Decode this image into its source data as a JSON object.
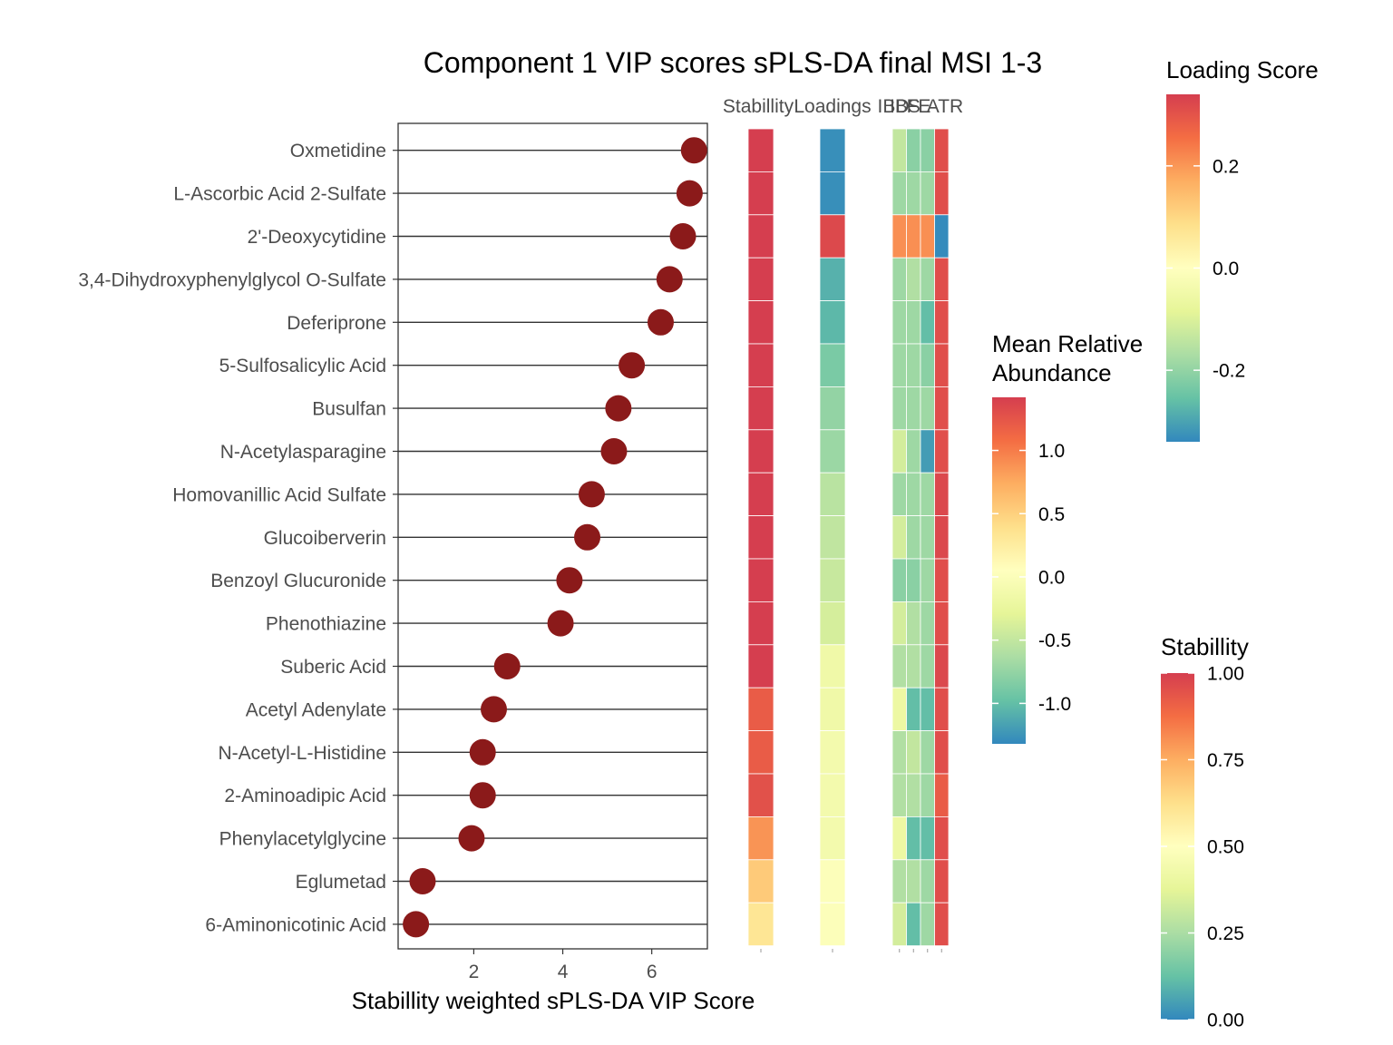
{
  "chart_data": {
    "type": "scatter",
    "title": "Component 1 VIP scores sPLS-DA final MSI 1-3",
    "xlabel": "Stabillity weighted sPLS-DA VIP Score",
    "ylabel": "",
    "xlim": [
      0.3,
      7.25
    ],
    "x_ticks": [
      2,
      4,
      6
    ],
    "marker_color": "#8b1a1a",
    "grid": false,
    "categories": [
      "Oxmetidine",
      "L-Ascorbic Acid 2-Sulfate",
      "2'-Deoxycytidine",
      "3,4-Dihydroxyphenylglycol O-Sulfate",
      "Deferiprone",
      "5-Sulfosalicylic Acid",
      "Busulfan",
      "N-Acetylasparagine",
      "Homovanillic Acid Sulfate",
      "Glucoiberverin",
      "Benzoyl Glucuronide",
      "Phenothiazine",
      "Suberic Acid",
      "Acetyl Adenylate",
      "N-Acetyl-L-Histidine",
      "2-Aminoadipic Acid",
      "Phenylacetylglycine",
      "Eglumetad",
      "6-Aminonicotinic Acid"
    ],
    "vip_scores": [
      6.95,
      6.85,
      6.7,
      6.4,
      6.2,
      5.55,
      5.25,
      5.15,
      4.65,
      4.55,
      4.15,
      3.95,
      2.75,
      2.45,
      2.2,
      2.2,
      1.95,
      0.85,
      0.7
    ],
    "heatmap_columns": [
      "Stabillity",
      "Loadings",
      "IBD",
      "IBS",
      "FE",
      "ATR"
    ],
    "stability": [
      1.0,
      1.0,
      1.0,
      1.0,
      1.0,
      1.0,
      1.0,
      1.0,
      1.0,
      1.0,
      1.0,
      1.0,
      1.0,
      0.92,
      0.92,
      0.95,
      0.8,
      0.68,
      0.6
    ],
    "loadings": [
      -0.33,
      -0.33,
      0.32,
      -0.28,
      -0.27,
      -0.23,
      -0.2,
      -0.19,
      -0.15,
      -0.14,
      -0.13,
      -0.11,
      -0.05,
      -0.05,
      -0.04,
      -0.04,
      -0.04,
      -0.01,
      -0.01
    ],
    "abundance": {
      "IBD": [
        -0.5,
        -0.7,
        0.9,
        -0.7,
        -0.7,
        -0.7,
        -0.7,
        -0.4,
        -0.7,
        -0.4,
        -0.8,
        -0.4,
        -0.6,
        -0.2,
        -0.6,
        -0.6,
        -0.2,
        -0.6,
        -0.4
      ],
      "IBS": [
        -0.8,
        -0.7,
        0.9,
        -0.6,
        -0.7,
        -0.7,
        -0.7,
        -0.7,
        -0.7,
        -0.7,
        -0.8,
        -0.6,
        -0.6,
        -1.0,
        -0.5,
        -0.6,
        -1.0,
        -0.6,
        -1.0
      ],
      "FE": [
        -0.8,
        -0.7,
        0.9,
        -0.7,
        -1.0,
        -0.8,
        -0.7,
        -1.2,
        -0.7,
        -0.7,
        -0.7,
        -0.7,
        -0.7,
        -1.0,
        -0.7,
        -0.7,
        -1.0,
        -0.7,
        -0.7
      ],
      "ATR": [
        1.3,
        1.3,
        -1.3,
        1.3,
        1.3,
        1.3,
        1.3,
        1.3,
        1.35,
        1.35,
        1.3,
        1.3,
        1.35,
        1.3,
        1.3,
        1.2,
        1.3,
        1.3,
        1.3
      ]
    },
    "legends": [
      {
        "title": "Loading Score",
        "ticks": [
          "0.2",
          "0.0",
          "-0.2"
        ],
        "tick_values": [
          0.2,
          0.0,
          -0.2
        ],
        "range": [
          -0.34,
          0.34
        ]
      },
      {
        "title_lines": [
          "Mean Relative",
          "Abundance"
        ],
        "ticks": [
          "1.0",
          "0.5",
          "0.0",
          "-0.5",
          "-1.0"
        ],
        "tick_values": [
          1.0,
          0.5,
          0.0,
          -0.5,
          -1.0
        ],
        "range": [
          -1.32,
          1.42
        ]
      },
      {
        "title": "Stabillity",
        "ticks": [
          "1.00",
          "0.75",
          "0.50",
          "0.25",
          "0.00"
        ],
        "tick_values": [
          1.0,
          0.75,
          0.5,
          0.25,
          0.0
        ],
        "range": [
          0.0,
          1.0
        ]
      }
    ],
    "palette": [
      "#3288bd",
      "#66c2a5",
      "#abdda4",
      "#e6f598",
      "#ffffbf",
      "#fee08b",
      "#fdae61",
      "#f46d43",
      "#d53e4f"
    ]
  }
}
